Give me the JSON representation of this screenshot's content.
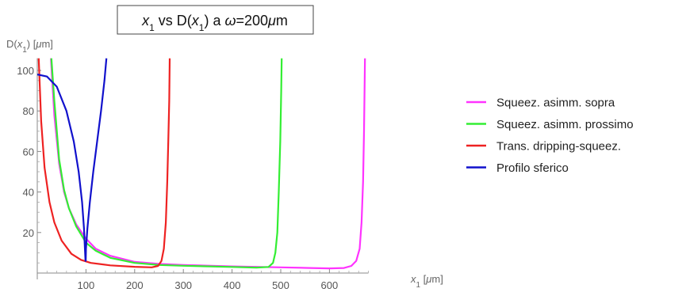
{
  "chart_data": {
    "type": "line",
    "title": {
      "a": "x",
      "a_sub": "1",
      "b": " vs D(",
      "c": "x",
      "c_sub": "1",
      "d": ") a ",
      "omega": "ω",
      "e": "=200",
      "mu": "μ",
      "f": "m"
    },
    "ylabel": {
      "a": "D(",
      "b": "x",
      "b_sub": "1",
      "c": ") [",
      "mu": "μ",
      "d": "m]"
    },
    "xlabel": {
      "a": "x",
      "a_sub": "1",
      "b": " [",
      "mu": "μ",
      "c": "m]"
    },
    "xlim": [
      0,
      680
    ],
    "ylim": [
      0,
      106
    ],
    "xticks": [
      100,
      200,
      300,
      400,
      500,
      600
    ],
    "yticks": [
      20,
      40,
      60,
      80,
      100
    ],
    "grid": false,
    "legend_position": "right",
    "series": [
      {
        "name": "Squeez. asimm. sopra",
        "color": "#ff33ff",
        "points": [
          [
            28,
            106
          ],
          [
            35,
            78
          ],
          [
            45,
            54
          ],
          [
            55,
            40
          ],
          [
            65,
            32
          ],
          [
            80,
            24
          ],
          [
            100,
            17
          ],
          [
            120,
            12
          ],
          [
            150,
            8.5
          ],
          [
            200,
            5.5
          ],
          [
            250,
            4.5
          ],
          [
            300,
            4
          ],
          [
            400,
            3.3
          ],
          [
            500,
            2.8
          ],
          [
            560,
            2.5
          ],
          [
            600,
            2.3
          ],
          [
            630,
            2.5
          ],
          [
            645,
            3.5
          ],
          [
            655,
            6
          ],
          [
            662,
            12
          ],
          [
            666,
            25
          ],
          [
            669,
            45
          ],
          [
            671,
            70
          ],
          [
            673,
            106
          ]
        ]
      },
      {
        "name": "Squeez. asimm. prossimo",
        "color": "#33ee33",
        "points": [
          [
            29,
            106
          ],
          [
            35,
            85
          ],
          [
            45,
            56
          ],
          [
            55,
            41
          ],
          [
            65,
            32
          ],
          [
            80,
            23
          ],
          [
            100,
            15
          ],
          [
            120,
            11
          ],
          [
            150,
            7.5
          ],
          [
            200,
            5
          ],
          [
            250,
            4
          ],
          [
            300,
            3.6
          ],
          [
            400,
            3
          ],
          [
            450,
            2.7
          ],
          [
            475,
            3
          ],
          [
            484,
            5
          ],
          [
            489,
            10
          ],
          [
            493,
            20
          ],
          [
            496,
            40
          ],
          [
            499,
            65
          ],
          [
            501,
            90
          ],
          [
            502,
            106
          ]
        ]
      },
      {
        "name": "Trans. dripping-squeez.",
        "color": "#ee2222",
        "points": [
          [
            3,
            106
          ],
          [
            8,
            75
          ],
          [
            15,
            52
          ],
          [
            25,
            35
          ],
          [
            35,
            25
          ],
          [
            50,
            16
          ],
          [
            70,
            9.5
          ],
          [
            90,
            6.5
          ],
          [
            110,
            5
          ],
          [
            150,
            3.8
          ],
          [
            200,
            3.1
          ],
          [
            235,
            2.8
          ],
          [
            248,
            3.5
          ],
          [
            255,
            6
          ],
          [
            260,
            12
          ],
          [
            264,
            25
          ],
          [
            267,
            45
          ],
          [
            269,
            65
          ],
          [
            271,
            85
          ],
          [
            272,
            106
          ]
        ]
      },
      {
        "name": "Profilo sferico",
        "color": "#1111cc",
        "points": [
          [
            0,
            98
          ],
          [
            20,
            97
          ],
          [
            40,
            92
          ],
          [
            60,
            80
          ],
          [
            75,
            65
          ],
          [
            85,
            50
          ],
          [
            92,
            35
          ],
          [
            96,
            22
          ],
          [
            98,
            11
          ],
          [
            99,
            6
          ],
          [
            99.5,
            6
          ],
          [
            100,
            12
          ],
          [
            103,
            22
          ],
          [
            108,
            35
          ],
          [
            115,
            50
          ],
          [
            123,
            65
          ],
          [
            131,
            80
          ],
          [
            138,
            95
          ],
          [
            142,
            106
          ]
        ]
      }
    ]
  }
}
